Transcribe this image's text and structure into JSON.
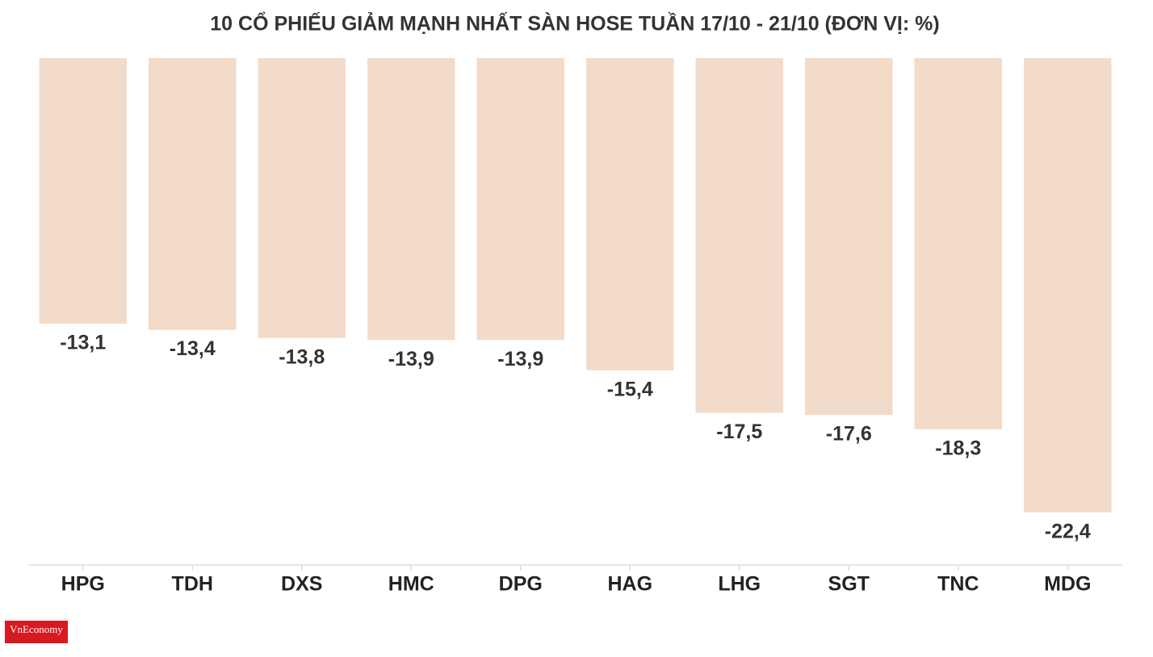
{
  "chart_data": {
    "type": "bar",
    "title": "10 CỔ PHIẾU GIẢM MẠNH NHẤT SÀN HOSE TUẦN 17/10 - 21/10 (ĐƠN VỊ: %)",
    "categories": [
      "HPG",
      "TDH",
      "DXS",
      "HMC",
      "DPG",
      "HAG",
      "LHG",
      "SGT",
      "TNC",
      "MDG"
    ],
    "values": [
      -13.1,
      -13.4,
      -13.8,
      -13.9,
      -13.9,
      -15.4,
      -17.5,
      -17.6,
      -18.3,
      -22.4
    ],
    "value_labels": [
      "-13,1",
      "-13,4",
      "-13,8",
      "-13,9",
      "-13,9",
      "-15,4",
      "-17,5",
      "-17,6",
      "-18,3",
      "-22,4"
    ],
    "color": "#f3dbc9",
    "ylim": [
      -25,
      0
    ]
  },
  "logo": "VnEconomy"
}
